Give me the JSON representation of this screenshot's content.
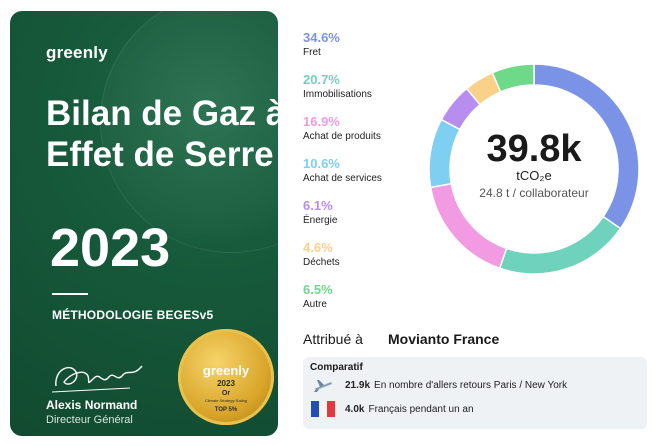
{
  "card": {
    "logo": "greenly",
    "title": "Bilan de Gaz à Effet de Serre",
    "year": "2023",
    "methodology": "MÉTHODOLOGIE BEGESv5",
    "signer_name": "Alexis Normand",
    "signer_role": "Directeur Général",
    "badge": {
      "brand": "greenly",
      "year": "2023",
      "rank": "Or",
      "subtitle": "Climate Strategy Rating",
      "top": "TOP 5%"
    }
  },
  "chart_data": {
    "type": "pie",
    "categories": [
      "Fret",
      "Immobilisations",
      "Achat de produits",
      "Achat de services",
      "Énergie",
      "Déchets",
      "Autre"
    ],
    "values": [
      34.6,
      20.7,
      16.9,
      10.6,
      6.1,
      4.6,
      6.5
    ],
    "labels": [
      "34.6%",
      "20.7%",
      "16.9%",
      "10.6%",
      "6.1%",
      "4.6%",
      "6.5%"
    ],
    "colors": [
      "#7b93e6",
      "#6fd2bc",
      "#f29ae2",
      "#7ecff2",
      "#b78ef0",
      "#f9d189",
      "#6fd98a"
    ],
    "donut": true
  },
  "center": {
    "total": "39.8k",
    "unit": "tCO₂e",
    "per_employee": "24.8 t / collaborateur"
  },
  "attribution": {
    "label": "Attribué à",
    "company": "Movianto France"
  },
  "comparatif": {
    "title": "Comparatif",
    "rows": [
      {
        "icon": "airplane-icon",
        "value": "21.9k",
        "text": "En nombre d'allers retours Paris / New York"
      },
      {
        "icon": "french-flag-icon",
        "value": "4.0k",
        "text": "Français pendant un an"
      }
    ]
  }
}
